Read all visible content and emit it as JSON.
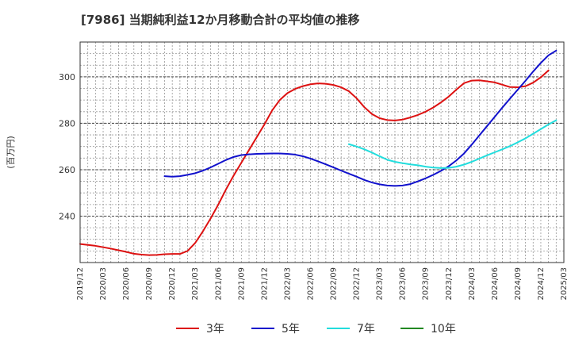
{
  "chart_data": {
    "type": "line",
    "title": "[7986]  当期純利益12か月移動合計の平均値の推移",
    "ylabel": "(百万円)",
    "xlabel": "",
    "ylim": [
      220,
      315
    ],
    "yticks": [
      240,
      260,
      280,
      300
    ],
    "xticks": [
      "2019/12",
      "2020/03",
      "2020/06",
      "2020/09",
      "2020/12",
      "2021/03",
      "2021/06",
      "2021/09",
      "2021/12",
      "2022/03",
      "2022/06",
      "2022/09",
      "2022/12",
      "2023/03",
      "2023/06",
      "2023/09",
      "2023/12",
      "2024/03",
      "2024/06",
      "2024/09",
      "2024/12",
      "2025/03"
    ],
    "grid": true,
    "legend_position": "bottom",
    "series": [
      {
        "name": "3年",
        "color": "#dd1111",
        "values": [
          [
            "2019/12",
            228.0
          ],
          [
            "2020/01",
            227.6
          ],
          [
            "2020/02",
            227.2
          ],
          [
            "2020/03",
            226.6
          ],
          [
            "2020/04",
            226.0
          ],
          [
            "2020/05",
            225.3
          ],
          [
            "2020/06",
            224.6
          ],
          [
            "2020/07",
            223.8
          ],
          [
            "2020/08",
            223.4
          ],
          [
            "2020/09",
            223.2
          ],
          [
            "2020/10",
            223.3
          ],
          [
            "2020/11",
            223.6
          ],
          [
            "2020/12",
            223.7
          ],
          [
            "2021/01",
            223.7
          ],
          [
            "2021/02",
            225.0
          ],
          [
            "2021/03",
            228.5
          ],
          [
            "2021/04",
            233.5
          ],
          [
            "2021/05",
            239.0
          ],
          [
            "2021/06",
            245.0
          ],
          [
            "2021/07",
            251.5
          ],
          [
            "2021/08",
            257.5
          ],
          [
            "2021/09",
            263.0
          ],
          [
            "2021/10",
            268.5
          ],
          [
            "2021/11",
            274.0
          ],
          [
            "2021/12",
            279.5
          ],
          [
            "2022/01",
            285.5
          ],
          [
            "2022/02",
            290.0
          ],
          [
            "2022/03",
            293.0
          ],
          [
            "2022/04",
            294.8
          ],
          [
            "2022/05",
            296.0
          ],
          [
            "2022/06",
            296.8
          ],
          [
            "2022/07",
            297.2
          ],
          [
            "2022/08",
            297.0
          ],
          [
            "2022/09",
            296.5
          ],
          [
            "2022/10",
            295.5
          ],
          [
            "2022/11",
            293.8
          ],
          [
            "2022/12",
            290.8
          ],
          [
            "2023/01",
            287.0
          ],
          [
            "2023/02",
            284.0
          ],
          [
            "2023/03",
            282.2
          ],
          [
            "2023/04",
            281.4
          ],
          [
            "2023/05",
            281.2
          ],
          [
            "2023/06",
            281.6
          ],
          [
            "2023/07",
            282.5
          ],
          [
            "2023/08",
            283.6
          ],
          [
            "2023/09",
            285.0
          ],
          [
            "2023/10",
            286.8
          ],
          [
            "2023/11",
            289.0
          ],
          [
            "2023/12",
            291.5
          ],
          [
            "2024/01",
            294.5
          ],
          [
            "2024/02",
            297.3
          ],
          [
            "2024/03",
            298.4
          ],
          [
            "2024/04",
            298.5
          ],
          [
            "2024/05",
            298.1
          ],
          [
            "2024/06",
            297.6
          ],
          [
            "2024/07",
            296.6
          ],
          [
            "2024/08",
            295.6
          ],
          [
            "2024/09",
            295.5
          ],
          [
            "2024/10",
            296.0
          ],
          [
            "2024/11",
            297.5
          ],
          [
            "2024/12",
            299.8
          ],
          [
            "2025/01",
            302.8
          ]
        ]
      },
      {
        "name": "5年",
        "color": "#1111cc",
        "values": [
          [
            "2020/11",
            257.2
          ],
          [
            "2020/12",
            257.0
          ],
          [
            "2021/01",
            257.2
          ],
          [
            "2021/02",
            257.8
          ],
          [
            "2021/03",
            258.5
          ],
          [
            "2021/04",
            259.6
          ],
          [
            "2021/05",
            261.0
          ],
          [
            "2021/06",
            262.6
          ],
          [
            "2021/07",
            264.2
          ],
          [
            "2021/08",
            265.5
          ],
          [
            "2021/09",
            266.3
          ],
          [
            "2021/10",
            266.6
          ],
          [
            "2021/11",
            266.8
          ],
          [
            "2021/12",
            266.9
          ],
          [
            "2022/01",
            267.0
          ],
          [
            "2022/02",
            267.0
          ],
          [
            "2022/03",
            266.8
          ],
          [
            "2022/04",
            266.5
          ],
          [
            "2022/05",
            265.8
          ],
          [
            "2022/06",
            264.8
          ],
          [
            "2022/07",
            263.6
          ],
          [
            "2022/08",
            262.3
          ],
          [
            "2022/09",
            261.0
          ],
          [
            "2022/10",
            259.6
          ],
          [
            "2022/11",
            258.3
          ],
          [
            "2022/12",
            257.0
          ],
          [
            "2023/01",
            255.6
          ],
          [
            "2023/02",
            254.5
          ],
          [
            "2023/03",
            253.7
          ],
          [
            "2023/04",
            253.2
          ],
          [
            "2023/05",
            253.0
          ],
          [
            "2023/06",
            253.2
          ],
          [
            "2023/07",
            253.8
          ],
          [
            "2023/08",
            255.0
          ],
          [
            "2023/09",
            256.3
          ],
          [
            "2023/10",
            257.8
          ],
          [
            "2023/11",
            259.5
          ],
          [
            "2023/12",
            261.5
          ],
          [
            "2024/01",
            264.0
          ],
          [
            "2024/02",
            267.0
          ],
          [
            "2024/03",
            270.8
          ],
          [
            "2024/04",
            274.8
          ],
          [
            "2024/05",
            278.8
          ],
          [
            "2024/06",
            282.8
          ],
          [
            "2024/07",
            286.8
          ],
          [
            "2024/08",
            290.7
          ],
          [
            "2024/09",
            294.5
          ],
          [
            "2024/10",
            298.3
          ],
          [
            "2024/11",
            302.3
          ],
          [
            "2024/12",
            306.0
          ],
          [
            "2025/01",
            309.3
          ],
          [
            "2025/02",
            311.3
          ]
        ]
      },
      {
        "name": "7年",
        "color": "#22dddd",
        "values": [
          [
            "2022/11",
            271.0
          ],
          [
            "2022/12",
            270.0
          ],
          [
            "2023/01",
            268.8
          ],
          [
            "2023/02",
            267.4
          ],
          [
            "2023/03",
            265.8
          ],
          [
            "2023/04",
            264.3
          ],
          [
            "2023/05",
            263.4
          ],
          [
            "2023/06",
            262.8
          ],
          [
            "2023/07",
            262.3
          ],
          [
            "2023/08",
            261.9
          ],
          [
            "2023/09",
            261.3
          ],
          [
            "2023/10",
            260.9
          ],
          [
            "2023/11",
            260.7
          ],
          [
            "2023/12",
            260.8
          ],
          [
            "2024/01",
            261.3
          ],
          [
            "2024/02",
            262.2
          ],
          [
            "2024/03",
            263.4
          ],
          [
            "2024/04",
            264.8
          ],
          [
            "2024/05",
            266.2
          ],
          [
            "2024/06",
            267.5
          ],
          [
            "2024/07",
            268.8
          ],
          [
            "2024/08",
            270.2
          ],
          [
            "2024/09",
            271.8
          ],
          [
            "2024/10",
            273.5
          ],
          [
            "2024/11",
            275.5
          ],
          [
            "2024/12",
            277.5
          ],
          [
            "2025/01",
            279.5
          ],
          [
            "2025/02",
            281.3
          ]
        ]
      },
      {
        "name": "10年",
        "color": "#228822",
        "values": []
      }
    ]
  }
}
